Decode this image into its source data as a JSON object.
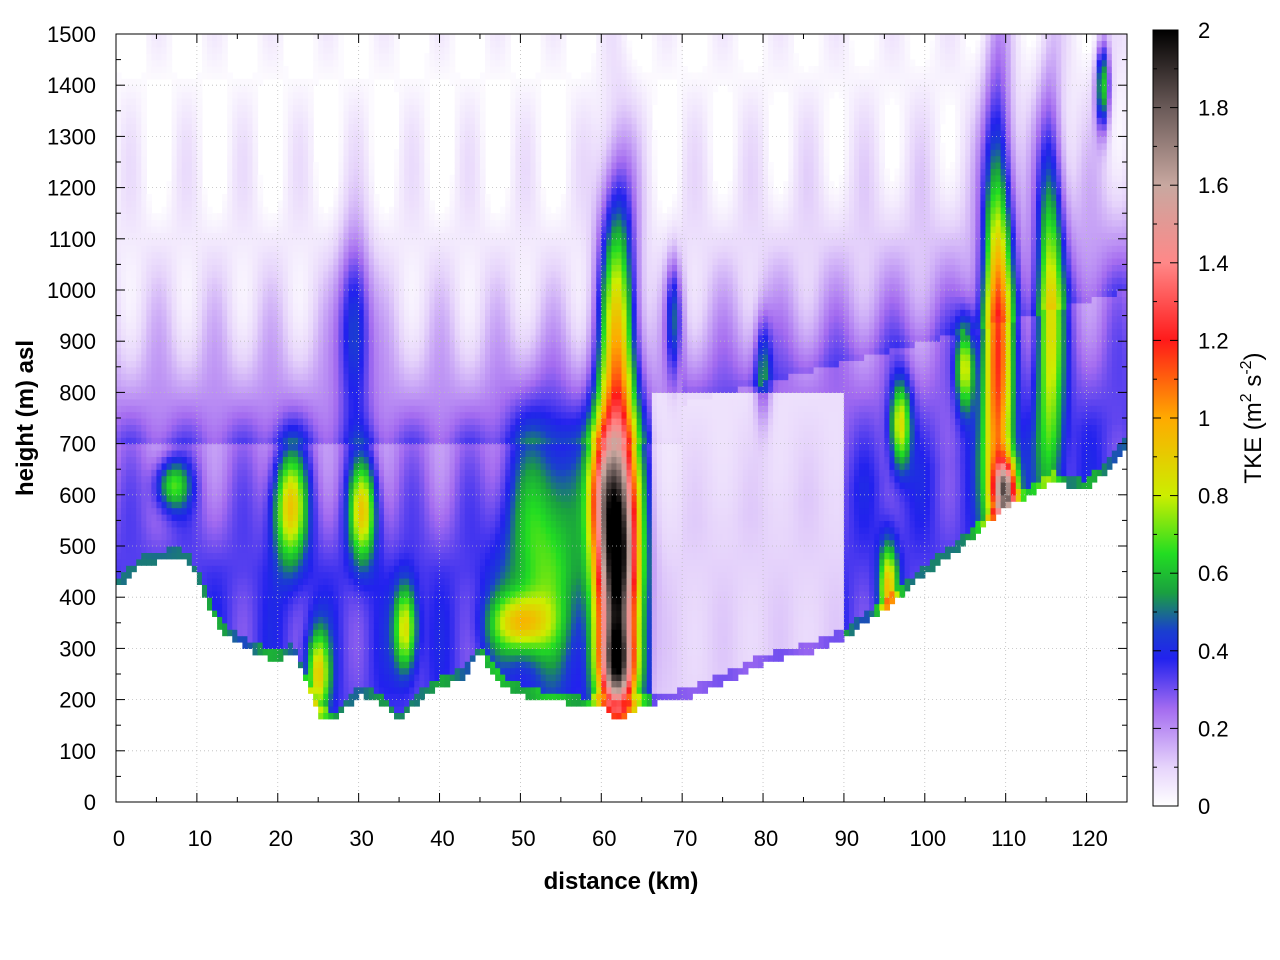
{
  "chart_data": {
    "type": "heatmap",
    "title": "",
    "xlabel": "distance (km)",
    "ylabel": "height (m) asl",
    "xlim": [
      0,
      125
    ],
    "ylim": [
      0,
      1500
    ],
    "x_ticks": [
      "0",
      "10",
      "20",
      "30",
      "40",
      "50",
      "60",
      "70",
      "80",
      "90",
      "100",
      "110",
      "120"
    ],
    "y_ticks": [
      "0",
      "100",
      "200",
      "300",
      "400",
      "500",
      "600",
      "700",
      "800",
      "900",
      "1000",
      "1100",
      "1200",
      "1300",
      "1400",
      "1500"
    ],
    "grid": true,
    "colorbar": {
      "label_main": "TKE (m",
      "label_sup1": "2",
      "label_mid": " s",
      "label_sup2": "-2",
      "label_end": ")",
      "range": [
        0,
        2
      ],
      "ticks": [
        "0",
        "0.2",
        "0.4",
        "0.6",
        "0.8",
        "1",
        "1.2",
        "1.4",
        "1.6",
        "1.8",
        "2"
      ],
      "stops": [
        {
          "v": 0.0,
          "color": "#ffffff"
        },
        {
          "v": 0.1,
          "color": "#e6d4fb"
        },
        {
          "v": 0.25,
          "color": "#a46cf0"
        },
        {
          "v": 0.38,
          "color": "#2222ee"
        },
        {
          "v": 0.45,
          "color": "#1a3ed0"
        },
        {
          "v": 0.55,
          "color": "#1aa040"
        },
        {
          "v": 0.65,
          "color": "#22dd22"
        },
        {
          "v": 0.8,
          "color": "#ccee00"
        },
        {
          "v": 1.0,
          "color": "#ffaa00"
        },
        {
          "v": 1.2,
          "color": "#ff1a1a"
        },
        {
          "v": 1.4,
          "color": "#ff8888"
        },
        {
          "v": 1.6,
          "color": "#c8a8a0"
        },
        {
          "v": 1.8,
          "color": "#6a5a58"
        },
        {
          "v": 2.0,
          "color": "#000000"
        }
      ]
    },
    "terrain": [
      [
        0,
        415
      ],
      [
        3,
        460
      ],
      [
        7,
        478
      ],
      [
        9,
        470
      ],
      [
        11,
        400
      ],
      [
        13,
        330
      ],
      [
        16,
        300
      ],
      [
        20,
        275
      ],
      [
        22,
        290
      ],
      [
        25,
        170
      ],
      [
        27,
        155
      ],
      [
        30,
        210
      ],
      [
        33,
        190
      ],
      [
        35,
        155
      ],
      [
        37,
        190
      ],
      [
        40,
        225
      ],
      [
        43,
        245
      ],
      [
        45,
        290
      ],
      [
        47,
        240
      ],
      [
        49,
        215
      ],
      [
        52,
        200
      ],
      [
        55,
        195
      ],
      [
        58,
        185
      ],
      [
        60,
        190
      ],
      [
        62,
        160
      ],
      [
        65,
        190
      ],
      [
        70,
        200
      ],
      [
        75,
        230
      ],
      [
        78,
        255
      ],
      [
        82,
        280
      ],
      [
        86,
        290
      ],
      [
        90,
        320
      ],
      [
        95,
        375
      ],
      [
        100,
        445
      ],
      [
        105,
        505
      ],
      [
        110,
        575
      ],
      [
        113,
        600
      ],
      [
        116,
        625
      ],
      [
        120,
        610
      ],
      [
        122,
        640
      ],
      [
        125,
        700
      ]
    ],
    "hotspots": [
      {
        "x": 62,
        "y": 480,
        "sx": 1.8,
        "sy": 180,
        "v": 1.7
      },
      {
        "x": 62,
        "y": 260,
        "sx": 1.6,
        "sy": 60,
        "v": 0.85
      },
      {
        "x": 62,
        "y": 930,
        "sx": 1.6,
        "sy": 220,
        "v": 0.75
      },
      {
        "x": 60,
        "y": 620,
        "sx": 1.2,
        "sy": 90,
        "v": 0.5
      },
      {
        "x": 21.5,
        "y": 580,
        "sx": 1.5,
        "sy": 80,
        "v": 0.62
      },
      {
        "x": 30.5,
        "y": 570,
        "sx": 1.2,
        "sy": 70,
        "v": 0.6
      },
      {
        "x": 29.5,
        "y": 940,
        "sx": 1.4,
        "sy": 120,
        "v": 0.4
      },
      {
        "x": 35.8,
        "y": 340,
        "sx": 1.0,
        "sy": 60,
        "v": 0.55
      },
      {
        "x": 25,
        "y": 250,
        "sx": 1.0,
        "sy": 60,
        "v": 0.55
      },
      {
        "x": 7,
        "y": 620,
        "sx": 1.5,
        "sy": 35,
        "v": 0.42
      },
      {
        "x": 50,
        "y": 350,
        "sx": 2.5,
        "sy": 40,
        "v": 0.5
      },
      {
        "x": 53,
        "y": 520,
        "sx": 3.5,
        "sy": 180,
        "v": 0.38
      },
      {
        "x": 95.5,
        "y": 420,
        "sx": 0.8,
        "sy": 60,
        "v": 0.6
      },
      {
        "x": 97,
        "y": 740,
        "sx": 0.9,
        "sy": 60,
        "v": 0.58
      },
      {
        "x": 105,
        "y": 850,
        "sx": 0.8,
        "sy": 60,
        "v": 0.58
      },
      {
        "x": 109,
        "y": 900,
        "sx": 1.3,
        "sy": 320,
        "v": 0.9
      },
      {
        "x": 110,
        "y": 610,
        "sx": 1.0,
        "sy": 40,
        "v": 1.1
      },
      {
        "x": 115.5,
        "y": 980,
        "sx": 1.2,
        "sy": 260,
        "v": 0.62
      },
      {
        "x": 122,
        "y": 1400,
        "sx": 0.6,
        "sy": 60,
        "v": 0.6
      },
      {
        "x": 69,
        "y": 950,
        "sx": 0.7,
        "sy": 80,
        "v": 0.35
      },
      {
        "x": 80,
        "y": 850,
        "sx": 0.7,
        "sy": 70,
        "v": 0.28
      }
    ]
  }
}
